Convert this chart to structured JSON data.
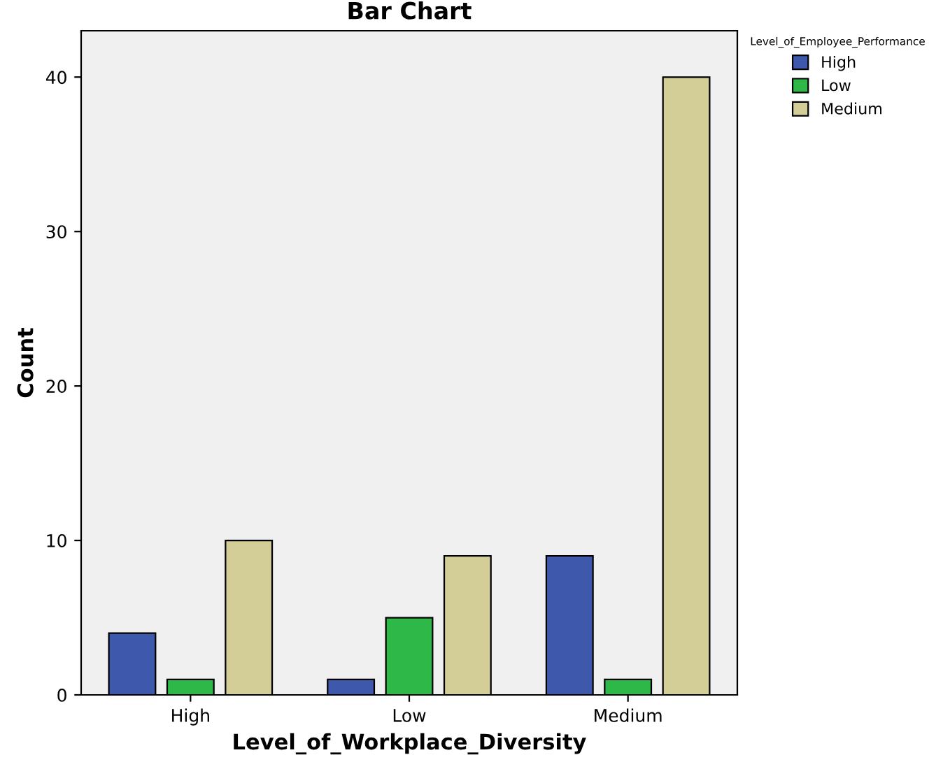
{
  "chart_data": {
    "type": "bar",
    "title": "Bar Chart",
    "xlabel": "Level_of_Workplace_Diversity",
    "ylabel": "Count",
    "legend_title": "Level_of_Employee_Performance",
    "categories": [
      "High",
      "Low",
      "Medium"
    ],
    "series": [
      {
        "name": "High",
        "color": "#3e58ac",
        "values": [
          4,
          1,
          9
        ]
      },
      {
        "name": "Low",
        "color": "#2eb848",
        "values": [
          1,
          5,
          1
        ]
      },
      {
        "name": "Medium",
        "color": "#d3ce97",
        "values": [
          10,
          9,
          40
        ]
      }
    ],
    "ylim": [
      0,
      43
    ],
    "yticks": [
      0,
      10,
      20,
      30,
      40
    ],
    "grid": false,
    "legend": "top right"
  }
}
